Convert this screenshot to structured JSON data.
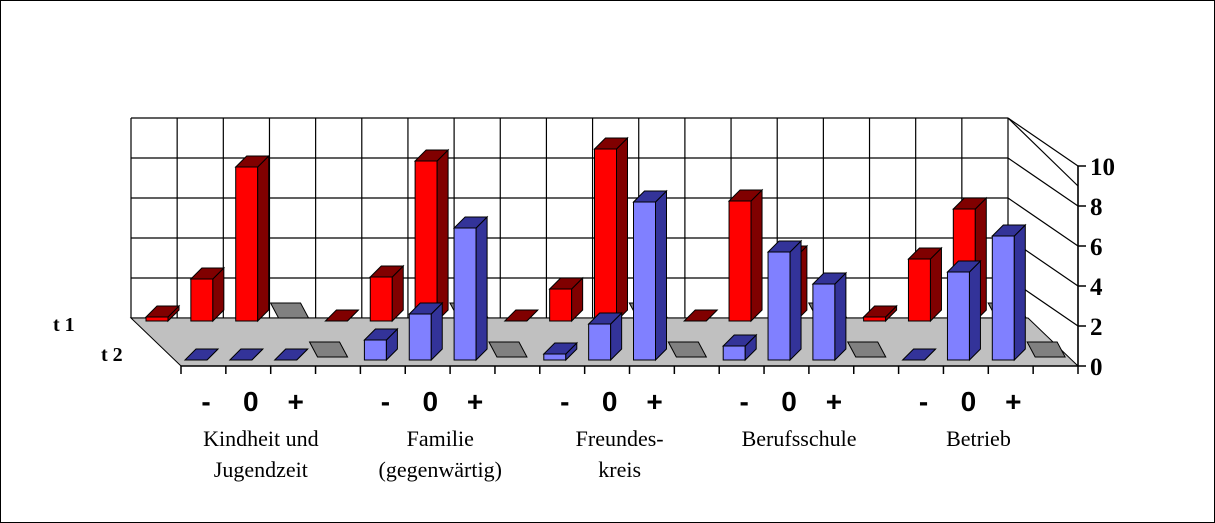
{
  "chart_data": {
    "type": "bar",
    "style": "3d-clustered-rows",
    "groups": [
      {
        "label_line1": "Kindheit und",
        "label_line2": "Jugendzeit"
      },
      {
        "label_line1": "Familie",
        "label_line2": "(gegenwärtig)"
      },
      {
        "label_line1": "Freundes-",
        "label_line2": "kreis"
      },
      {
        "label_line1": "Berufsschule",
        "label_line2": ""
      },
      {
        "label_line1": "Betrieb",
        "label_line2": ""
      }
    ],
    "sub_categories": [
      "-",
      "0",
      "+"
    ],
    "series": [
      {
        "name": "t 1",
        "color": "#ff0000",
        "dark": "#800000",
        "values": [
          [
            0.2,
            2.1,
            7.7
          ],
          [
            0,
            2.2,
            8.0
          ],
          [
            0.0,
            1.6,
            8.6
          ],
          [
            0.0,
            6.0,
            3.2
          ],
          [
            0.2,
            3.1,
            5.6
          ]
        ]
      },
      {
        "name": "t 2",
        "color": "#8080ff",
        "dark": "#333399",
        "values": [
          [
            0,
            0,
            0
          ],
          [
            1.0,
            2.3,
            6.6
          ],
          [
            0.3,
            1.8,
            7.9
          ],
          [
            0.7,
            5.4,
            3.8
          ],
          [
            0,
            4.4,
            6.2
          ]
        ]
      }
    ],
    "ylim": [
      0,
      10
    ],
    "yticks": [
      "0",
      "2",
      "4",
      "6",
      "8",
      "10"
    ],
    "grid": true,
    "legend": "row labels at left"
  }
}
